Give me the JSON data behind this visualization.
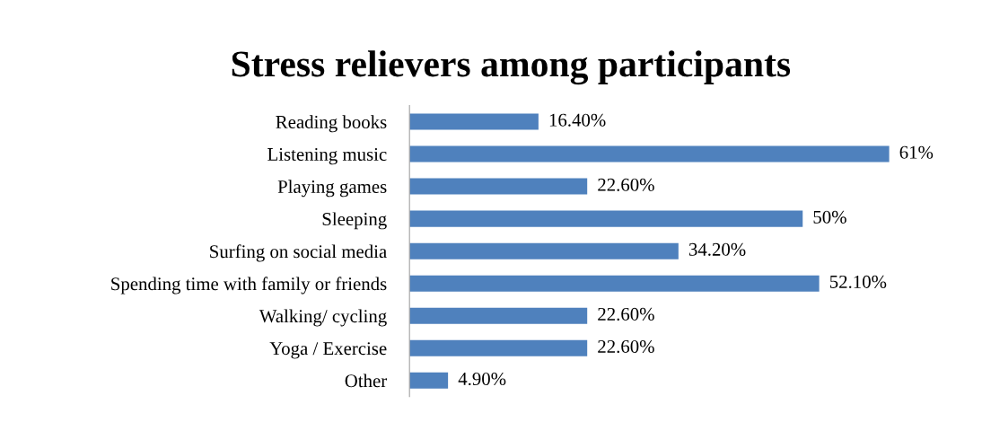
{
  "chart_data": {
    "type": "bar",
    "orientation": "horizontal",
    "title": "Stress relievers among participants",
    "categories": [
      "Reading books",
      "Listening music",
      "Playing games",
      "Sleeping",
      "Surfing on social media",
      "Spending time with family or friends",
      "Walking/ cycling",
      "Yoga / Exercise",
      "Other"
    ],
    "values": [
      16.4,
      61,
      22.6,
      50,
      34.2,
      52.1,
      22.6,
      22.6,
      4.9
    ],
    "value_labels": [
      "16.40%",
      "61%",
      "22.60%",
      "50%",
      "34.20%",
      "52.10%",
      "22.60%",
      "22.60%",
      "4.90%"
    ],
    "color": "#4f81bd",
    "grid": false,
    "legend": false
  }
}
